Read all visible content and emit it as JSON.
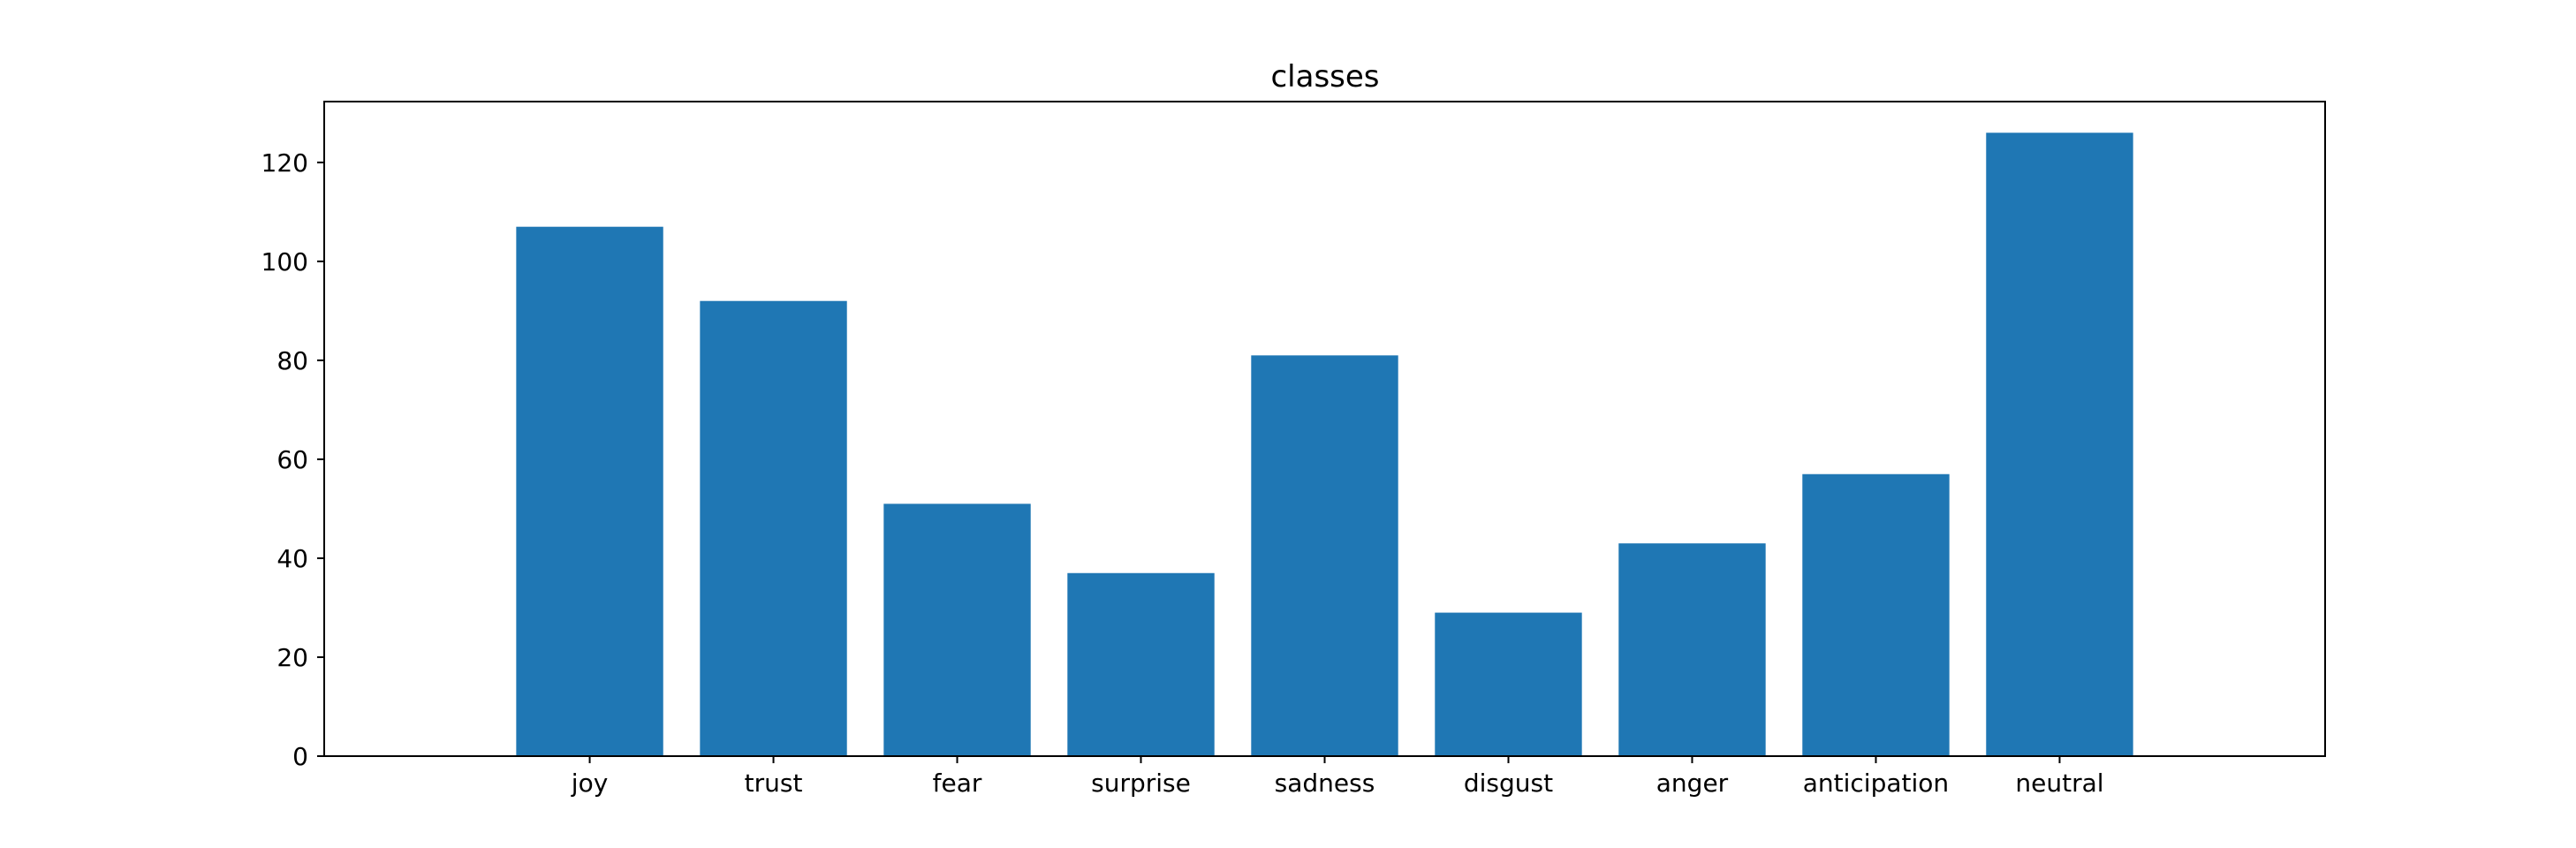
{
  "chart_data": {
    "type": "bar",
    "title": "classes",
    "xlabel": "",
    "ylabel": "",
    "categories": [
      "joy",
      "trust",
      "fear",
      "surprise",
      "sadness",
      "disgust",
      "anger",
      "anticipation",
      "neutral"
    ],
    "values": [
      107,
      92,
      51,
      37,
      81,
      29,
      43,
      57,
      126
    ],
    "ylim": [
      0,
      132.3
    ],
    "yticks": [
      0,
      20,
      40,
      60,
      80,
      100,
      120
    ],
    "grid": false,
    "legend": false,
    "bar_color": "#1f77b4",
    "axis_color": "#000000"
  }
}
